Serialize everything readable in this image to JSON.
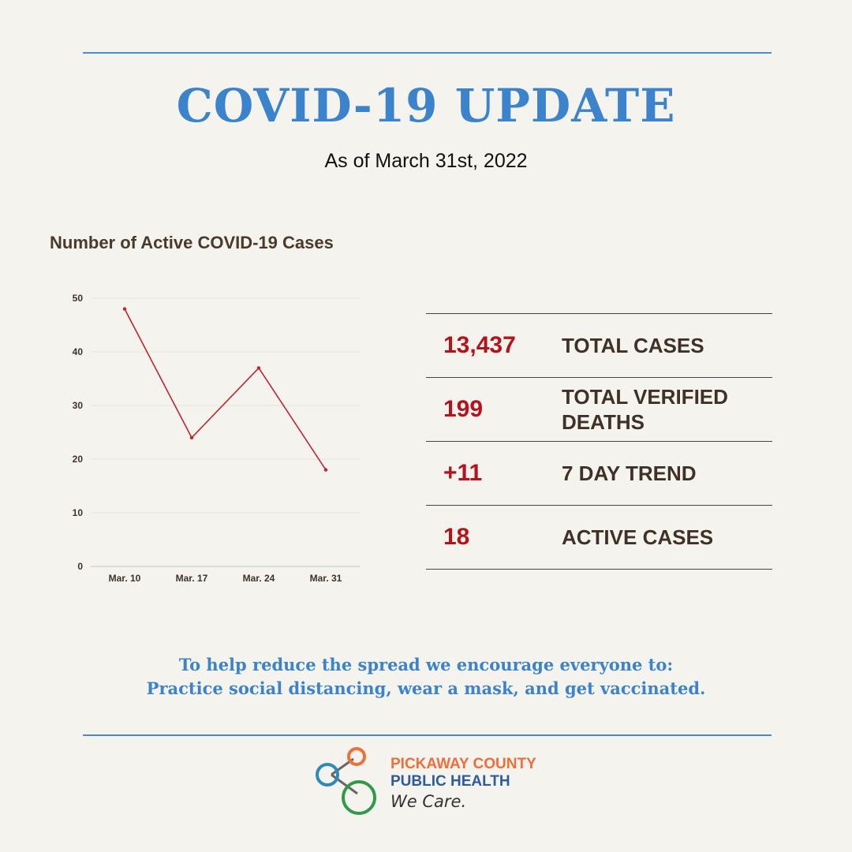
{
  "header": {
    "title": "COVID-19 UPDATE",
    "subtitle": "As of March 31st, 2022"
  },
  "chart_title": "Number of Active COVID-19 Cases",
  "chart_data": {
    "type": "line",
    "categories": [
      "Mar. 10",
      "Mar. 17",
      "Mar. 24",
      "Mar. 31"
    ],
    "values": [
      48,
      24,
      37,
      18
    ],
    "ylim": [
      0,
      50
    ],
    "yticks": [
      0,
      10,
      20,
      30,
      40,
      50
    ],
    "grid": true,
    "legend": "none",
    "colors": {
      "line": "#c0262d",
      "grid": "#e6e4dd",
      "axis": "#c9c6bd",
      "ticks": "#3f3128"
    }
  },
  "stats": [
    {
      "value": "13,437",
      "label": "TOTAL CASES"
    },
    {
      "value": "199",
      "label": "TOTAL VERIFIED DEATHS"
    },
    {
      "value": "+11",
      "label": "7 DAY TREND"
    },
    {
      "value": "18",
      "label": "ACTIVE CASES"
    }
  ],
  "message": {
    "line1": "To help reduce the spread we encourage everyone to:",
    "line2": "Practice social distancing, wear a mask, and get vaccinated."
  },
  "logo": {
    "org_line1": "PICKAWAY COUNTY",
    "org_line2": "PUBLIC HEALTH",
    "tagline": "We Care.",
    "colors": {
      "orange": "#ef6f3a",
      "blue": "#2e8ab8",
      "green": "#2f9a47",
      "navy": "#2e5aa0"
    }
  },
  "colors": {
    "background": "#f4f3ee",
    "accent_blue": "#3b83cc",
    "stat_red": "#b5121b",
    "text_brown": "#3f3128"
  }
}
